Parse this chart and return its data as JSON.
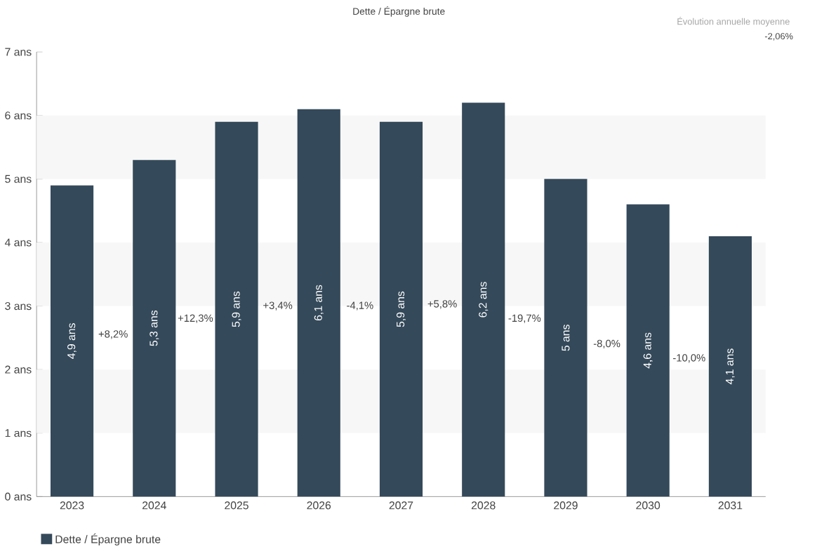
{
  "chart_data": {
    "type": "bar",
    "title": "Dette / Épargne brute",
    "categories": [
      "2023",
      "2024",
      "2025",
      "2026",
      "2027",
      "2028",
      "2029",
      "2030",
      "2031"
    ],
    "series": [
      {
        "name": "Dette / Épargne brute",
        "color": "#34495a",
        "values": [
          4.9,
          5.3,
          5.9,
          6.1,
          5.9,
          6.2,
          5,
          4.6,
          4.1
        ],
        "value_labels": [
          "4,9 ans",
          "5,3 ans",
          "5,9 ans",
          "6,1 ans",
          "5,9 ans",
          "6,2 ans",
          "5 ans",
          "4,6 ans",
          "4,1 ans"
        ]
      }
    ],
    "ylim": [
      0,
      7
    ],
    "yticks": [
      {
        "value": 0,
        "label": "0 ans"
      },
      {
        "value": 1,
        "label": "1 ans"
      },
      {
        "value": 2,
        "label": "2 ans"
      },
      {
        "value": 3,
        "label": "3 ans"
      },
      {
        "value": 4,
        "label": "4 ans"
      },
      {
        "value": 5,
        "label": "5 ans"
      },
      {
        "value": 6,
        "label": "6 ans"
      },
      {
        "value": 7,
        "label": "7 ans"
      }
    ],
    "bands": [
      {
        "axis": "y",
        "from": 1,
        "to": 2,
        "color": "#f7f7f7"
      },
      {
        "axis": "y",
        "from": 3,
        "to": 4,
        "color": "#f7f7f7"
      },
      {
        "axis": "y",
        "from": 5,
        "to": 6,
        "color": "#f7f7f7"
      }
    ],
    "legend": "bottom left",
    "annotations": [
      "Évolution annuelle moyenne",
      "-2,06%",
      "+8,2%",
      "+12,3%",
      "+3,4%",
      "-4,1%",
      "+5,8%",
      "-19,7%",
      "-8,0%",
      "-10,0%"
    ]
  }
}
